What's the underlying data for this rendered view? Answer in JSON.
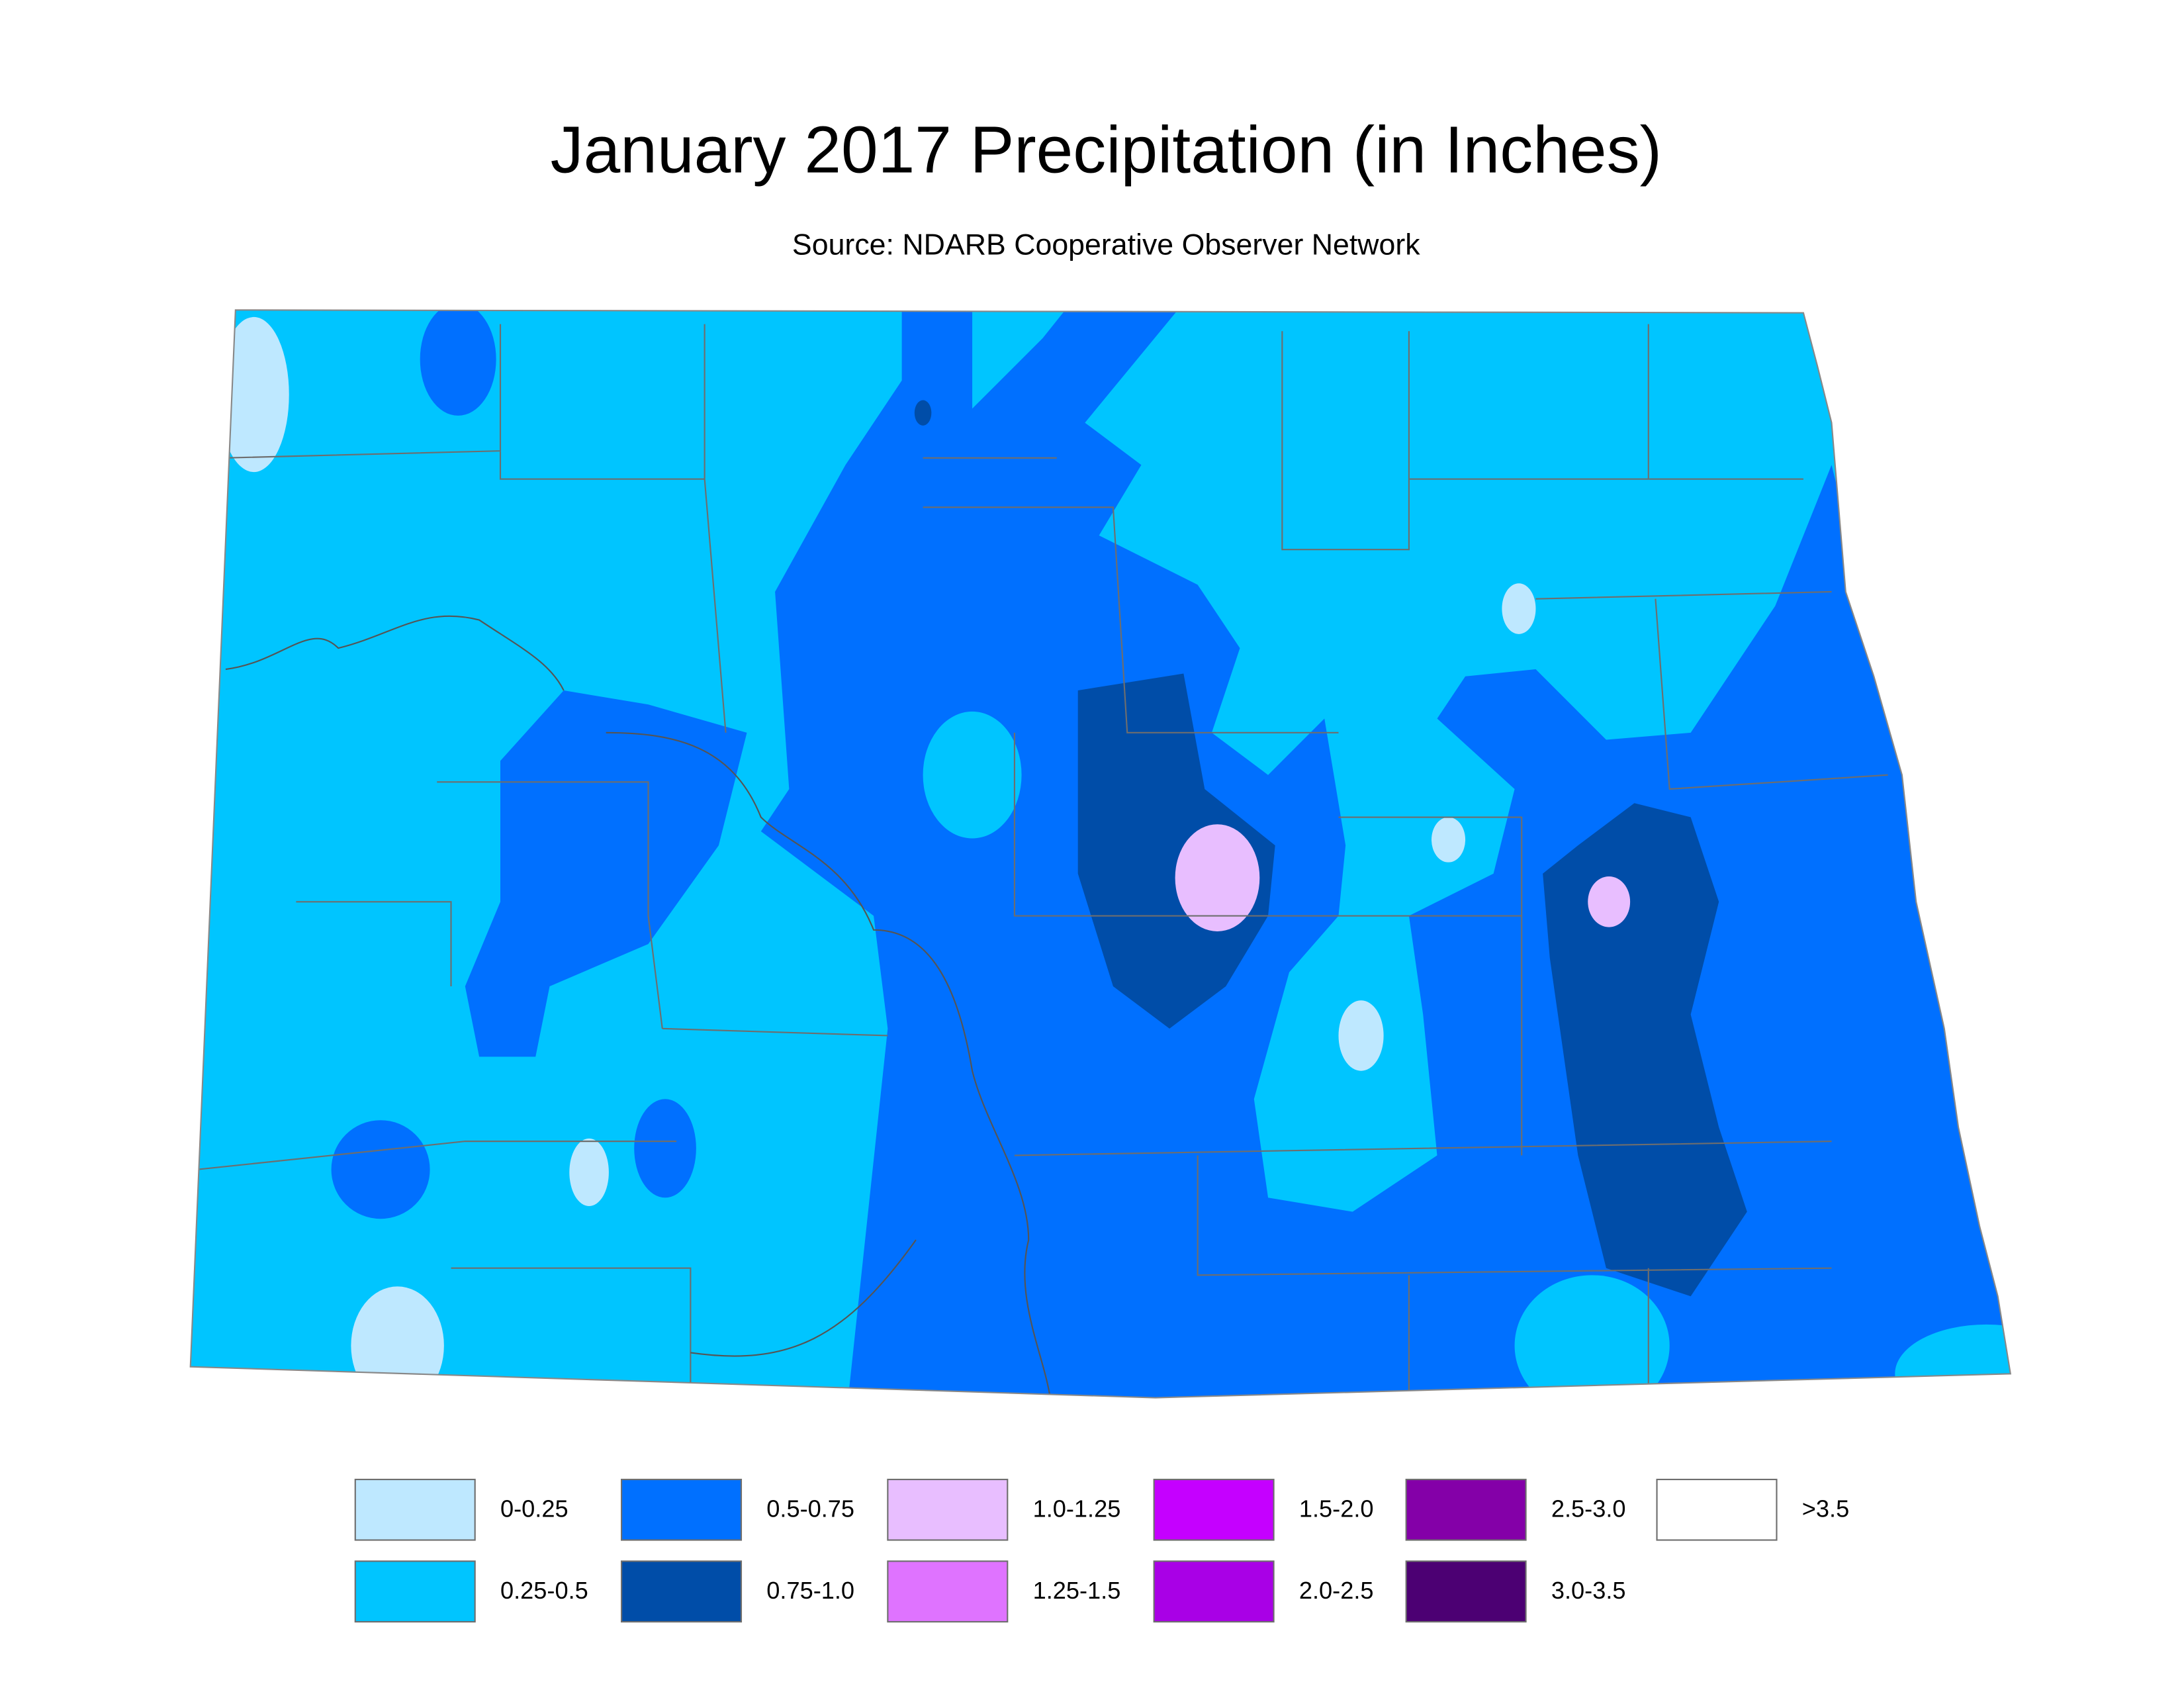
{
  "title": "January 2017 Precipitation (in Inches)",
  "subtitle": "Source: NDARB Cooperative Observer Network",
  "legend": {
    "items": [
      {
        "label": "0-0.25",
        "color": "#bee8ff"
      },
      {
        "label": "0.25-0.5",
        "color": "#00c5ff"
      },
      {
        "label": "0.5-0.75",
        "color": "#0070ff"
      },
      {
        "label": "0.75-1.0",
        "color": "#004da8"
      },
      {
        "label": "1.0-1.25",
        "color": "#e8beff"
      },
      {
        "label": "1.25-1.5",
        "color": "#df73ff"
      },
      {
        "label": "1.5-2.0",
        "color": "#c500ff"
      },
      {
        "label": "2.0-2.5",
        "color": "#a900e6"
      },
      {
        "label": "2.5-3.0",
        "color": "#8400a8"
      },
      {
        "label": "3.0-3.5",
        "color": "#4c0073"
      },
      {
        "label": ">3.5",
        "color": "#ffffff"
      }
    ]
  }
}
